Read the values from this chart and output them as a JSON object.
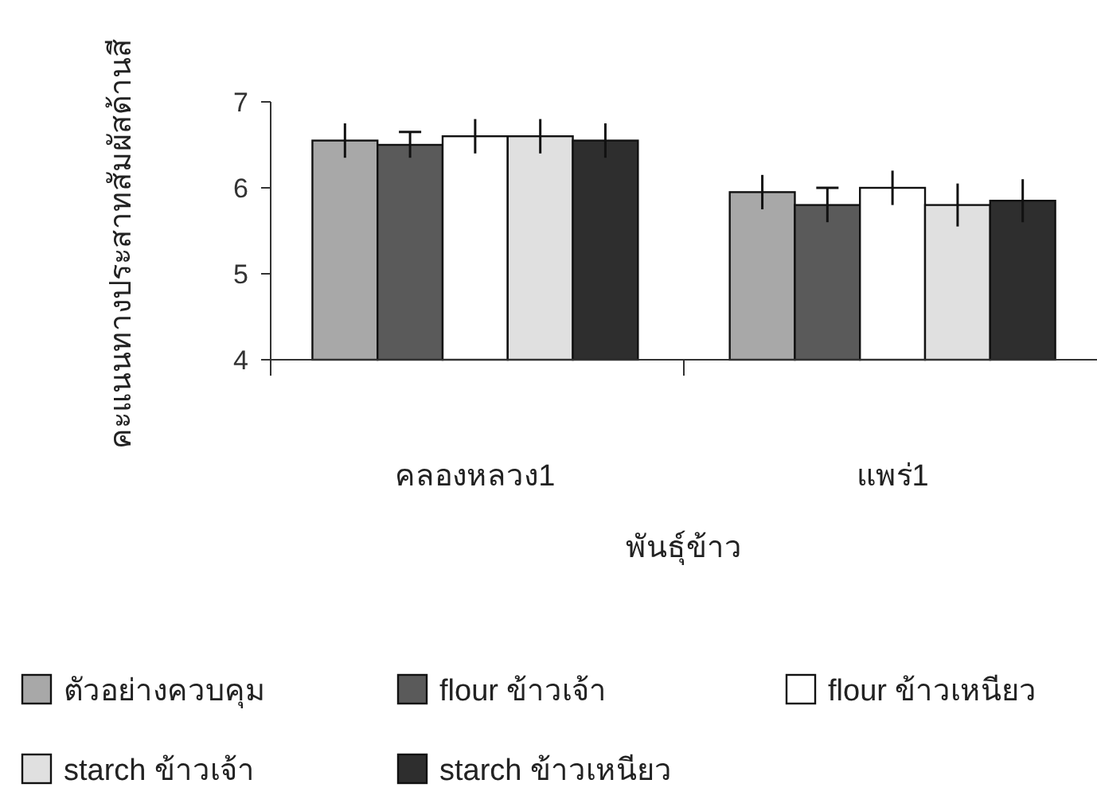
{
  "chart_data": {
    "type": "bar",
    "xlabel": "พันธุ์ข้าว",
    "ylabel": "คะแนนทางประสาทสัมผัสด้านสี",
    "categories": [
      "คลองหลวง1",
      "แพร่1"
    ],
    "series": [
      {
        "name": "ตัวอย่างควบคุม",
        "color": "#a8a8a8",
        "values": [
          6.55,
          5.95
        ],
        "errors": [
          0.2,
          0.2
        ]
      },
      {
        "name": "flour ข้าวเจ้า",
        "color": "#5a5a5a",
        "values": [
          6.5,
          5.8
        ],
        "errors": [
          0.15,
          0.2
        ]
      },
      {
        "name": "flour ข้าวเหนียว",
        "color": "#ffffff",
        "values": [
          6.6,
          6.0
        ],
        "errors": [
          0.2,
          0.2
        ]
      },
      {
        "name": "starch ข้าวเจ้า",
        "color": "#e0e0e0",
        "values": [
          6.6,
          5.8
        ],
        "errors": [
          0.2,
          0.25
        ]
      },
      {
        "name": "starch ข้าวเหนียว",
        "color": "#2e2e2e",
        "values": [
          6.55,
          5.85
        ],
        "errors": [
          0.2,
          0.25
        ]
      }
    ],
    "ylim": [
      4,
      7
    ],
    "yticks": [
      4,
      5,
      6,
      7
    ],
    "grid": false,
    "legend": "bottom"
  }
}
